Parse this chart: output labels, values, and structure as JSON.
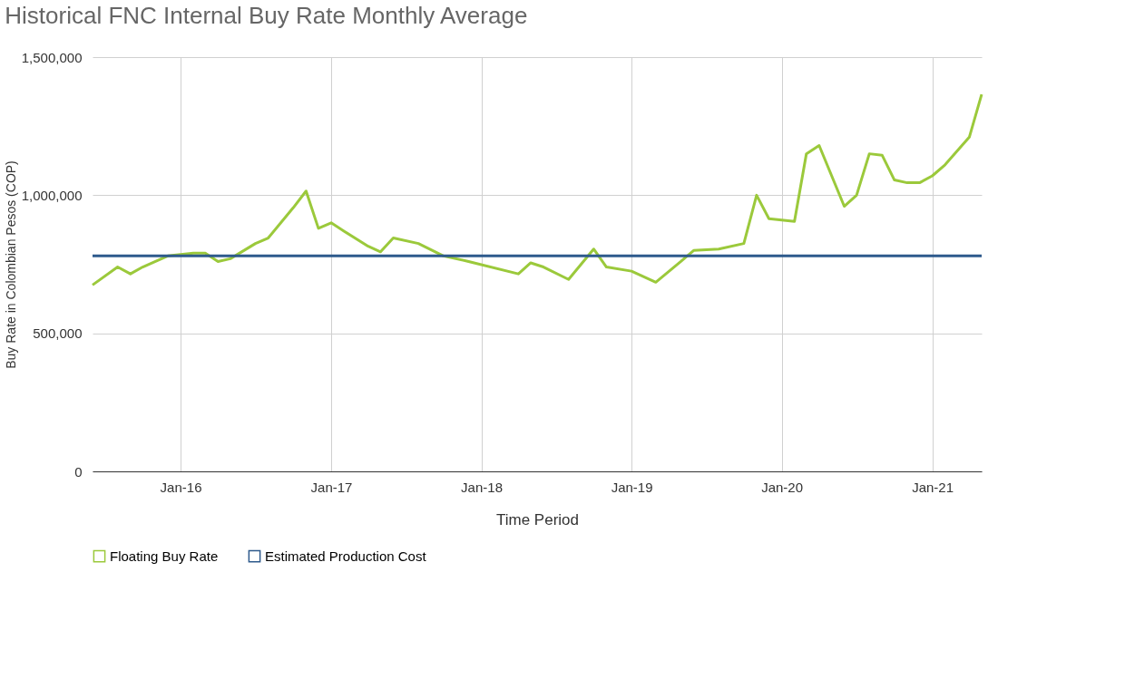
{
  "chart_data": {
    "type": "line",
    "title": "Historical FNC Internal Buy Rate Monthly Average",
    "xlabel": "Time Period",
    "ylabel": "Buy Rate in Colombian Pesos (COP)",
    "xlim": [
      "2015-06",
      "2021-05"
    ],
    "ylim": [
      0,
      1500000
    ],
    "yticks": [
      0,
      {
        "value": 500000,
        "label": "500,000"
      },
      {
        "value": 1000000,
        "label": "1,000,000"
      },
      {
        "value": 1500000,
        "label": "1,500,000"
      }
    ],
    "xticks": [
      {
        "value": "2016-01",
        "label": "Jan-16"
      },
      {
        "value": "2017-01",
        "label": "Jan-17"
      },
      {
        "value": "2018-01",
        "label": "Jan-18"
      },
      {
        "value": "2019-01",
        "label": "Jan-19"
      },
      {
        "value": "2020-01",
        "label": "Jan-20"
      },
      {
        "value": "2021-01",
        "label": "Jan-21"
      }
    ],
    "grid": true,
    "legend": "bottom",
    "marker": "none",
    "line_style": "solid",
    "series": [
      {
        "name": "Floating Buy Rate",
        "color": "#9bc93b",
        "x": [
          "2015-06",
          "2015-08",
          "2015-09",
          "2015-10",
          "2015-11",
          "2015-12",
          "2016-02",
          "2016-03",
          "2016-04",
          "2016-05",
          "2016-07",
          "2016-08",
          "2016-10",
          "2016-11",
          "2016-12",
          "2017-01",
          "2017-02",
          "2017-04",
          "2017-05",
          "2017-06",
          "2017-08",
          "2017-10",
          "2017-12",
          "2018-04",
          "2018-05",
          "2018-06",
          "2018-08",
          "2018-10",
          "2018-11",
          "2019-01",
          "2019-03",
          "2019-05",
          "2019-06",
          "2019-08",
          "2019-10",
          "2019-11",
          "2019-12",
          "2020-02",
          "2020-03",
          "2020-04",
          "2020-06",
          "2020-07",
          "2020-08",
          "2020-09",
          "2020-10",
          "2020-11",
          "2020-12",
          "2021-01",
          "2021-02",
          "2021-04",
          "2021-05"
        ],
        "values": [
          675000,
          740000,
          715000,
          740000,
          760000,
          780000,
          790000,
          790000,
          760000,
          770000,
          825000,
          845000,
          955000,
          1015000,
          880000,
          900000,
          870000,
          815000,
          795000,
          845000,
          825000,
          780000,
          760000,
          715000,
          755000,
          740000,
          695000,
          805000,
          740000,
          725000,
          685000,
          760000,
          800000,
          805000,
          825000,
          1000000,
          915000,
          905000,
          1150000,
          1180000,
          960000,
          1000000,
          1150000,
          1145000,
          1055000,
          1045000,
          1045000,
          1070000,
          1110000,
          1210000,
          1365000
        ]
      },
      {
        "name": "Estimated Production Cost",
        "color": "#2e5a8c",
        "x": [
          "2015-06",
          "2021-05"
        ],
        "values": [
          780000,
          780000
        ]
      }
    ]
  }
}
